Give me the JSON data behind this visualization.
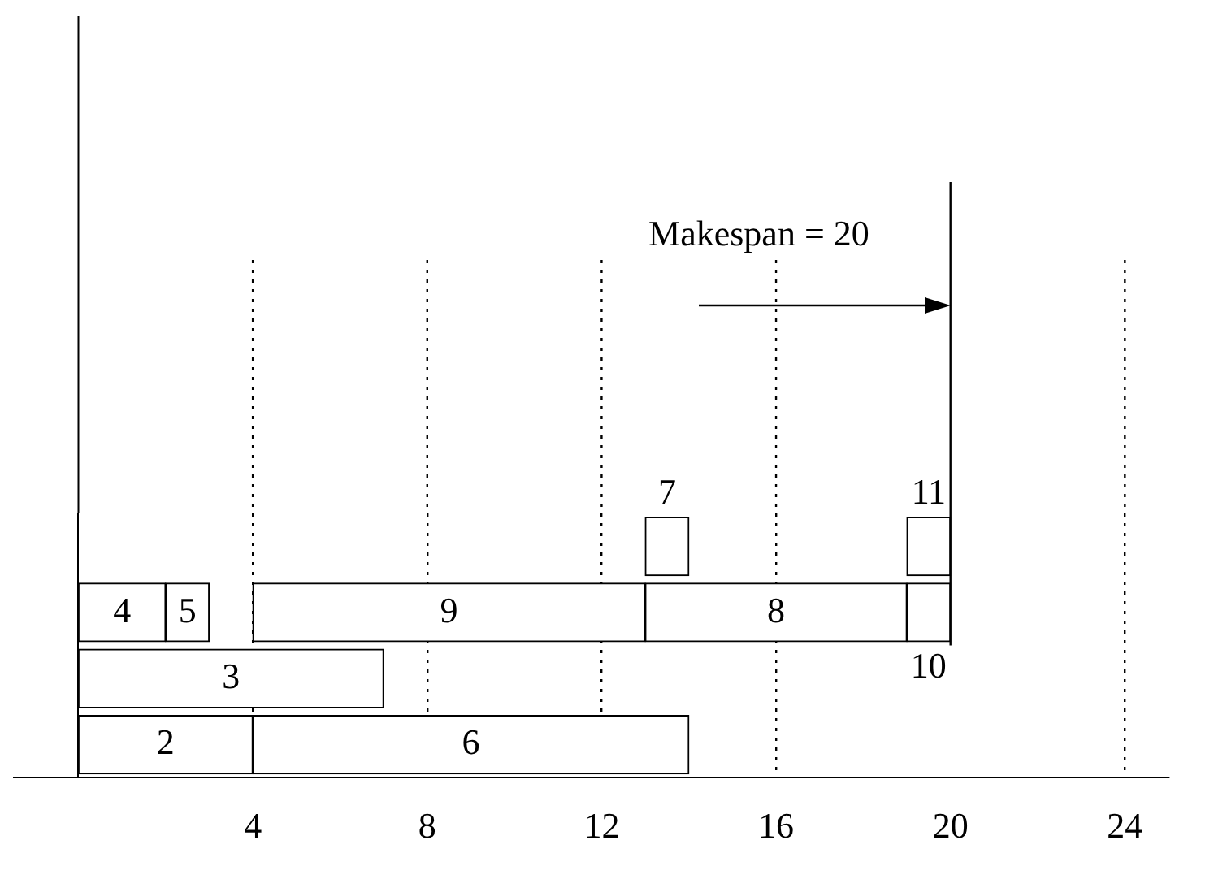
{
  "chart_data": {
    "type": "bar",
    "orientation": "horizontal",
    "categories": [
      null,
      null,
      null,
      null
    ],
    "series": [
      {
        "name": "7",
        "color": "#ffffff",
        "base": [
          13,
          null,
          null,
          null
        ],
        "values": [
          1,
          null,
          null,
          null
        ]
      },
      {
        "name": "11",
        "color": "#ffffff",
        "base": [
          19,
          null,
          null,
          null
        ],
        "values": [
          1,
          null,
          null,
          null
        ]
      },
      {
        "name": "4",
        "color": "#ffffff",
        "base": [
          null,
          0,
          null,
          null
        ],
        "values": [
          null,
          2,
          null,
          null
        ]
      },
      {
        "name": "5",
        "color": "#ffffff",
        "base": [
          null,
          2,
          null,
          null
        ],
        "values": [
          null,
          1,
          null,
          null
        ]
      },
      {
        "name": "9",
        "color": "#ffffff",
        "base": [
          null,
          4,
          null,
          null
        ],
        "values": [
          null,
          9,
          null,
          null
        ]
      },
      {
        "name": "8",
        "color": "#ffffff",
        "base": [
          null,
          13,
          null,
          null
        ],
        "values": [
          null,
          6,
          null,
          null
        ]
      },
      {
        "name": "10",
        "color": "#ffffff",
        "base": [
          null,
          19,
          null,
          null
        ],
        "values": [
          null,
          1,
          null,
          null
        ]
      },
      {
        "name": "3",
        "color": "#ffffff",
        "base": [
          null,
          null,
          0,
          null
        ],
        "values": [
          null,
          null,
          7,
          null
        ]
      },
      {
        "name": "2",
        "color": "#ffffff",
        "base": [
          null,
          null,
          null,
          0
        ],
        "values": [
          null,
          null,
          null,
          4
        ]
      },
      {
        "name": "6",
        "color": "#ffffff",
        "base": [
          null,
          null,
          null,
          4
        ],
        "values": [
          null,
          null,
          null,
          10
        ]
      }
    ],
    "xlim": [
      -1.5,
      25
    ],
    "xticks": [
      4,
      8,
      12,
      16,
      20,
      24
    ],
    "grid": "x",
    "tick_labels": "x",
    "legend": false,
    "ref_lines": [
      {
        "axis": "x",
        "value": 20,
        "label": "Makespan = 20"
      }
    ]
  }
}
